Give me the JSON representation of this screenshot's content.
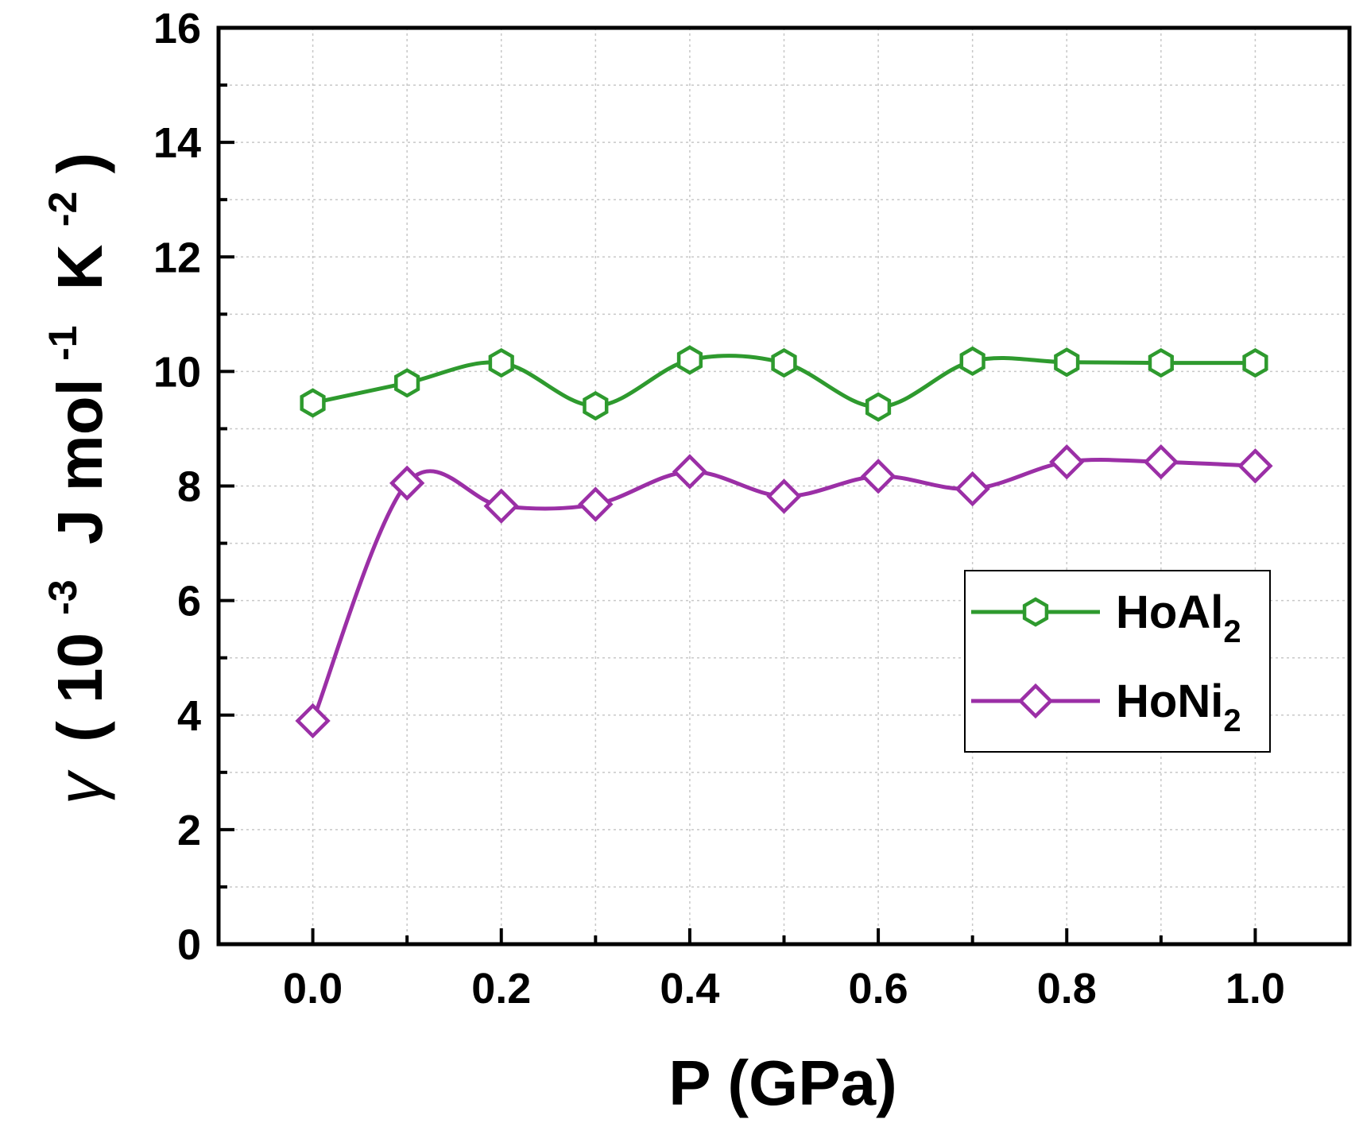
{
  "chart_data": {
    "type": "line",
    "title": "",
    "xlabel": "P (GPa)",
    "ylabel": {
      "symbol": "γ",
      "open": "(",
      "base": "10",
      "exp1": "-3",
      "unit_j": "J mol",
      "exp2": "-1",
      "unit_k": "K",
      "exp3": "-2",
      "close": ")"
    },
    "xlim": [
      -0.1,
      1.1
    ],
    "ylim": [
      0,
      16
    ],
    "x_ticks": [
      0.0,
      0.2,
      0.4,
      0.6,
      0.8,
      1.0
    ],
    "x_tick_labels": [
      "0.0",
      "0.2",
      "0.4",
      "0.6",
      "0.8",
      "1.0"
    ],
    "y_ticks": [
      0,
      2,
      4,
      6,
      8,
      10,
      12,
      14,
      16
    ],
    "y_tick_labels": [
      "0",
      "2",
      "4",
      "6",
      "8",
      "10",
      "12",
      "14",
      "16"
    ],
    "grid": true,
    "legend_position": "center-right",
    "x": [
      0.0,
      0.1,
      0.2,
      0.3,
      0.4,
      0.5,
      0.6,
      0.7,
      0.8,
      0.9,
      1.0
    ],
    "series": [
      {
        "name_base": "HoAl",
        "name_sub": "2",
        "marker": "hexagon",
        "color": "#2e9a2e",
        "values": [
          9.45,
          9.8,
          10.15,
          9.4,
          10.2,
          10.15,
          9.38,
          10.18,
          10.16,
          10.15,
          10.15
        ]
      },
      {
        "name_base": "HoNi",
        "name_sub": "2",
        "marker": "diamond",
        "color": "#9b2fa6",
        "values": [
          3.9,
          8.05,
          7.65,
          7.68,
          8.25,
          7.82,
          8.17,
          7.95,
          8.42,
          8.42,
          8.35
        ]
      }
    ]
  }
}
